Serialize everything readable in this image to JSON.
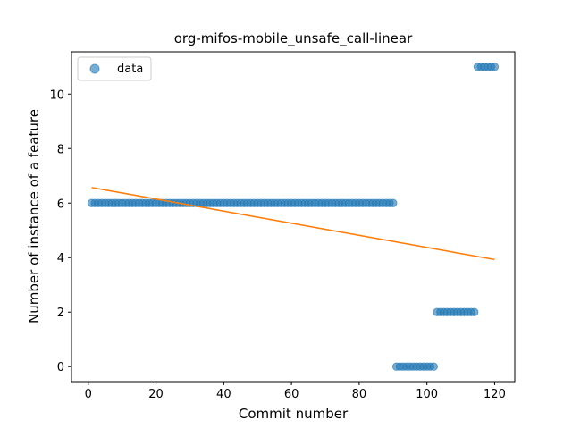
{
  "chart_data": {
    "type": "scatter",
    "title": "org-mifos-mobile_unsafe_call-linear",
    "xlabel": "Commit number",
    "ylabel": "Number of instance of a feature",
    "xlim": [
      -4.95,
      125.95
    ],
    "ylim": [
      -0.55,
      11.55
    ],
    "xticks": [
      0,
      20,
      40,
      60,
      80,
      100,
      120
    ],
    "yticks": [
      0,
      2,
      4,
      6,
      8,
      10
    ],
    "grid": false,
    "legend": {
      "position": "top-left",
      "entries": [
        "data"
      ]
    },
    "series": [
      {
        "name": "data",
        "kind": "scatter",
        "color": "#1f77b4",
        "segments": [
          {
            "x_from": 1,
            "x_to": 90,
            "y": 6
          },
          {
            "x_from": 91,
            "x_to": 102,
            "y": 0
          },
          {
            "x_from": 103,
            "x_to": 114,
            "y": 2
          },
          {
            "x_from": 115,
            "x_to": 120,
            "y": 11
          }
        ]
      },
      {
        "name": "",
        "kind": "line",
        "color": "#ff7f0e",
        "x": [
          1,
          120
        ],
        "y": [
          6.57,
          3.93
        ]
      }
    ]
  }
}
